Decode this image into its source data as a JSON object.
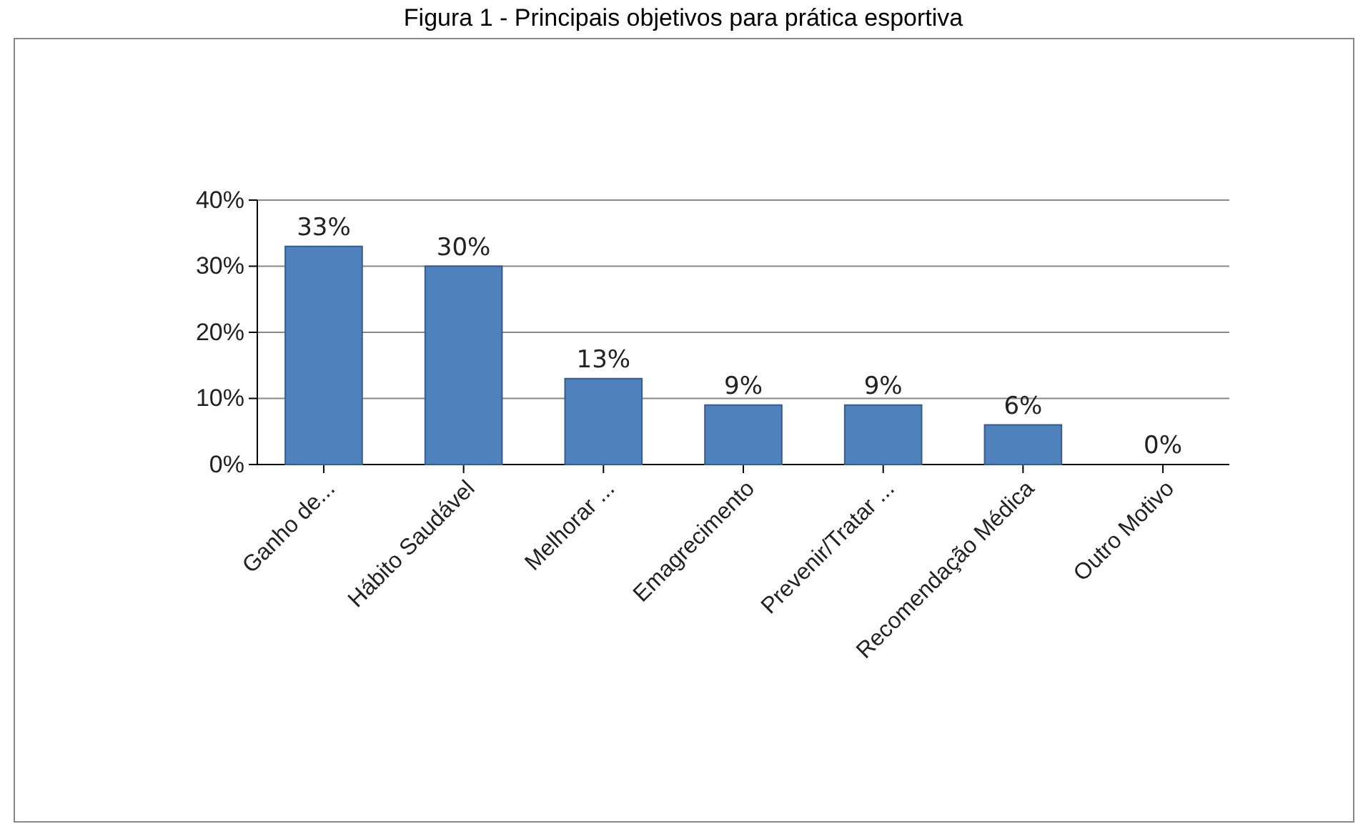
{
  "chart_data": {
    "type": "bar",
    "title": "Figura 1 - Principais objetivos para prática esportiva",
    "categories": [
      "Ganho de...",
      "Hábito Saudável",
      "Melhorar ...",
      "Emagrecimento",
      "Prevenir/Tratar ...",
      "Recomendação Médica",
      "Outro Motivo"
    ],
    "values": [
      33,
      30,
      13,
      9,
      9,
      6,
      0
    ],
    "value_labels": [
      "33%",
      "30%",
      "13%",
      "9%",
      "9%",
      "6%",
      "0%"
    ],
    "color": "#4f81bd",
    "ylim": [
      0,
      40
    ],
    "yticks": [
      {
        "value": 0,
        "label": "0%"
      },
      {
        "value": 10,
        "label": "10%"
      },
      {
        "value": 20,
        "label": "20%"
      },
      {
        "value": 30,
        "label": "30%"
      },
      {
        "value": 40,
        "label": "40%"
      }
    ],
    "grid": "y"
  }
}
